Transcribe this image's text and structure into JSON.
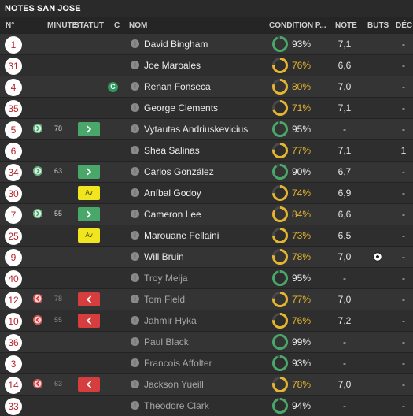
{
  "title": "NOTES SAN JOSE",
  "columns": {
    "num": "N°",
    "minute": "MINUTE",
    "statut": "STATUT",
    "c": "C",
    "nom": "NOM",
    "condition": "CONDITION P...",
    "note": "NOTE",
    "buts": "BUTS",
    "dec": "DÉC"
  },
  "colors": {
    "green": "#4aa76a",
    "red": "#d63d3d",
    "yellow": "#f0e51e",
    "amber": "#e5b530",
    "number_text": "#b5242c"
  },
  "players": [
    {
      "num": "1",
      "sub": "",
      "minute": "",
      "statut": "",
      "captain": "",
      "name": "David Bingham",
      "condition": "93%",
      "condition_value": 93,
      "note": "7,1",
      "goal_icon": false,
      "buts": "",
      "dec": "-",
      "dim": false
    },
    {
      "num": "31",
      "sub": "",
      "minute": "",
      "statut": "",
      "captain": "",
      "name": "Joe Maroales",
      "condition": "76%",
      "condition_value": 76,
      "note": "6,6",
      "goal_icon": false,
      "buts": "",
      "dec": "-",
      "dim": false
    },
    {
      "num": "4",
      "sub": "",
      "minute": "",
      "statut": "",
      "captain": "C",
      "name": "Renan Fonseca",
      "condition": "80%",
      "condition_value": 80,
      "note": "7,0",
      "goal_icon": false,
      "buts": "",
      "dec": "-",
      "dim": false
    },
    {
      "num": "35",
      "sub": "",
      "minute": "",
      "statut": "",
      "captain": "",
      "name": "George Clements",
      "condition": "71%",
      "condition_value": 71,
      "note": "7,1",
      "goal_icon": false,
      "buts": "",
      "dec": "-",
      "dim": false
    },
    {
      "num": "5",
      "sub": "in",
      "minute": "78",
      "statut": "green",
      "captain": "",
      "name": "Vytautas Andriuskevicius",
      "condition": "95%",
      "condition_value": 95,
      "note": "-",
      "goal_icon": false,
      "buts": "",
      "dec": "-",
      "dim": false
    },
    {
      "num": "6",
      "sub": "",
      "minute": "",
      "statut": "",
      "captain": "",
      "name": "Shea Salinas",
      "condition": "77%",
      "condition_value": 77,
      "note": "7,1",
      "goal_icon": false,
      "buts": "",
      "dec": "1",
      "dim": false
    },
    {
      "num": "34",
      "sub": "in",
      "minute": "63",
      "statut": "green",
      "captain": "",
      "name": "Carlos González",
      "condition": "90%",
      "condition_value": 90,
      "note": "6,7",
      "goal_icon": false,
      "buts": "",
      "dec": "-",
      "dim": false
    },
    {
      "num": "30",
      "sub": "",
      "minute": "",
      "statut": "yellow",
      "statut_label": "Av",
      "captain": "",
      "name": "Aníbal Godoy",
      "condition": "74%",
      "condition_value": 74,
      "note": "6,9",
      "goal_icon": false,
      "buts": "",
      "dec": "-",
      "dim": false
    },
    {
      "num": "7",
      "sub": "in",
      "minute": "55",
      "statut": "green",
      "captain": "",
      "name": "Cameron Lee",
      "condition": "84%",
      "condition_value": 84,
      "note": "6,6",
      "goal_icon": false,
      "buts": "",
      "dec": "-",
      "dim": false
    },
    {
      "num": "25",
      "sub": "",
      "minute": "",
      "statut": "yellow",
      "statut_label": "Av",
      "captain": "",
      "name": "Marouane Fellaini",
      "condition": "73%",
      "condition_value": 73,
      "note": "6,5",
      "goal_icon": false,
      "buts": "",
      "dec": "-",
      "dim": false
    },
    {
      "num": "9",
      "sub": "",
      "minute": "",
      "statut": "",
      "captain": "",
      "name": "Will Bruin",
      "condition": "78%",
      "condition_value": 78,
      "note": "7,0",
      "goal_icon": true,
      "buts": "",
      "dec": "-",
      "dim": false
    },
    {
      "num": "40",
      "sub": "",
      "minute": "",
      "statut": "",
      "captain": "",
      "name": "Troy Meija",
      "condition": "95%",
      "condition_value": 95,
      "note": "-",
      "goal_icon": false,
      "buts": "",
      "dec": "-",
      "dim": true
    },
    {
      "num": "12",
      "sub": "out",
      "minute": "78",
      "statut": "red",
      "captain": "",
      "name": "Tom Field",
      "condition": "77%",
      "condition_value": 77,
      "note": "7,0",
      "goal_icon": false,
      "buts": "",
      "dec": "-",
      "dim": true
    },
    {
      "num": "10",
      "sub": "out",
      "minute": "55",
      "statut": "red",
      "captain": "",
      "name": "Jahmir Hyka",
      "condition": "76%",
      "condition_value": 76,
      "note": "7,2",
      "goal_icon": false,
      "buts": "",
      "dec": "-",
      "dim": true
    },
    {
      "num": "36",
      "sub": "",
      "minute": "",
      "statut": "",
      "captain": "",
      "name": "Paul Black",
      "condition": "99%",
      "condition_value": 99,
      "note": "-",
      "goal_icon": false,
      "buts": "",
      "dec": "-",
      "dim": true
    },
    {
      "num": "3",
      "sub": "",
      "minute": "",
      "statut": "",
      "captain": "",
      "name": "Francois Affolter",
      "condition": "93%",
      "condition_value": 93,
      "note": "-",
      "goal_icon": false,
      "buts": "",
      "dec": "-",
      "dim": true
    },
    {
      "num": "14",
      "sub": "out",
      "minute": "63",
      "statut": "red",
      "captain": "",
      "name": "Jackson Yueill",
      "condition": "78%",
      "condition_value": 78,
      "note": "7,0",
      "goal_icon": false,
      "buts": "",
      "dec": "-",
      "dim": true
    },
    {
      "num": "33",
      "sub": "",
      "minute": "",
      "statut": "",
      "captain": "",
      "name": "Theodore Clark",
      "condition": "94%",
      "condition_value": 94,
      "note": "-",
      "goal_icon": false,
      "buts": "",
      "dec": "-",
      "dim": true
    }
  ]
}
